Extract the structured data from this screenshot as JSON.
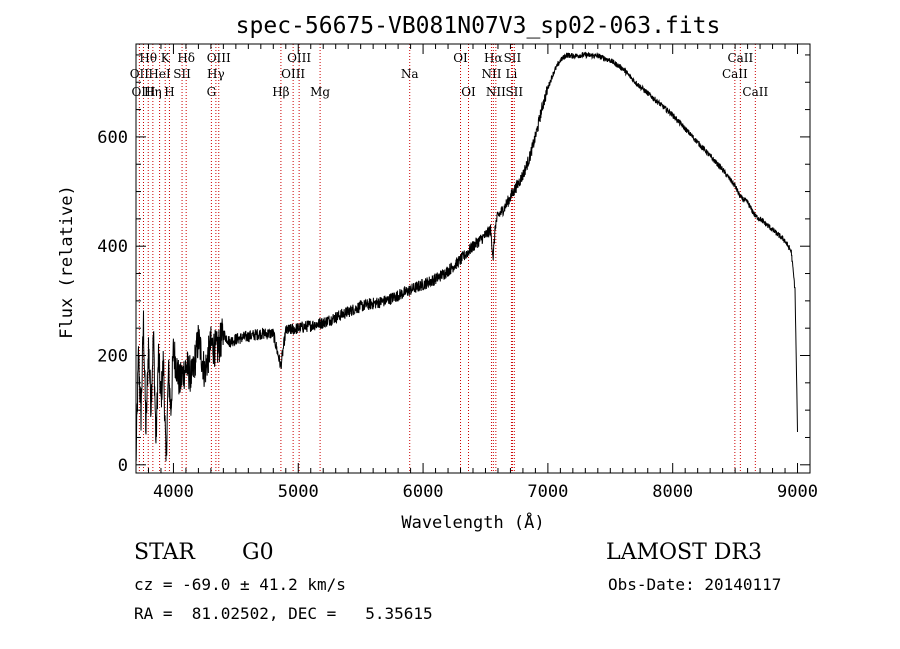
{
  "chart_data": {
    "type": "line",
    "title": "spec-56675-VB081N07V3_sp02-063.fits",
    "xlabel": "Wavelength (Å)",
    "ylabel": "Flux (relative)",
    "xlim": [
      3700,
      9100
    ],
    "ylim": [
      -15,
      770
    ],
    "x_ticks": [
      4000,
      5000,
      6000,
      7000,
      8000,
      9000
    ],
    "y_ticks": [
      0,
      200,
      400,
      600
    ],
    "grid": false,
    "series": [
      {
        "name": "flux",
        "x": [
          3700,
          3720,
          3740,
          3760,
          3780,
          3800,
          3820,
          3840,
          3860,
          3880,
          3900,
          3920,
          3940,
          3960,
          3980,
          4000,
          4050,
          4100,
          4150,
          4200,
          4250,
          4300,
          4350,
          4400,
          4450,
          4500,
          4600,
          4700,
          4800,
          4860,
          4900,
          5000,
          5100,
          5200,
          5300,
          5400,
          5500,
          5600,
          5700,
          5800,
          5900,
          6000,
          6100,
          6200,
          6300,
          6400,
          6450,
          6500,
          6540,
          6562,
          6580,
          6600,
          6650,
          6700,
          6750,
          6800,
          6850,
          6900,
          6950,
          7000,
          7050,
          7100,
          7150,
          7200,
          7300,
          7400,
          7500,
          7600,
          7700,
          7800,
          7900,
          8000,
          8100,
          8200,
          8300,
          8400,
          8500,
          8542,
          8600,
          8662,
          8700,
          8800,
          8900,
          8950,
          8980,
          9000
        ],
        "y": [
          0,
          200,
          90,
          260,
          60,
          220,
          110,
          240,
          40,
          200,
          120,
          190,
          0,
          170,
          100,
          210,
          150,
          180,
          160,
          230,
          170,
          220,
          210,
          240,
          225,
          230,
          235,
          240,
          240,
          180,
          245,
          250,
          255,
          260,
          270,
          280,
          290,
          295,
          300,
          310,
          320,
          330,
          340,
          355,
          375,
          400,
          410,
          420,
          430,
          380,
          440,
          455,
          470,
          490,
          510,
          530,
          560,
          600,
          650,
          690,
          720,
          740,
          750,
          748,
          750,
          748,
          740,
          725,
          700,
          680,
          660,
          640,
          615,
          590,
          565,
          540,
          510,
          490,
          480,
          455,
          450,
          430,
          410,
          390,
          320,
          60
        ]
      }
    ],
    "spectral_lines": [
      {
        "label": "Hθ",
        "wavelength": 3798,
        "row": 1
      },
      {
        "label": "OII",
        "wavelength": 3727,
        "row": 2
      },
      {
        "label": "OIII",
        "wavelength": 3760,
        "row": 3
      },
      {
        "label": "K",
        "wavelength": 3934,
        "row": 1
      },
      {
        "label": "HeI",
        "wavelength": 3889,
        "row": 2
      },
      {
        "label": "Hη",
        "wavelength": 3835,
        "row": 3
      },
      {
        "label": "SII",
        "wavelength": 4069,
        "row": 2
      },
      {
        "label": "H",
        "wavelength": 3968,
        "row": 3
      },
      {
        "label": "Hδ",
        "wavelength": 4102,
        "row": 1
      },
      {
        "label": "OIII",
        "wavelength": 4363,
        "row": 1
      },
      {
        "label": "Hγ",
        "wavelength": 4340,
        "row": 2
      },
      {
        "label": "G",
        "wavelength": 4304,
        "row": 3
      },
      {
        "label": "OIII",
        "wavelength": 5007,
        "row": 1
      },
      {
        "label": "OIII",
        "wavelength": 4959,
        "row": 2
      },
      {
        "label": "Hβ",
        "wavelength": 4861,
        "row": 3
      },
      {
        "label": "Mg",
        "wavelength": 5175,
        "row": 3
      },
      {
        "label": "Na",
        "wavelength": 5893,
        "row": 2
      },
      {
        "label": "OI",
        "wavelength": 6300,
        "row": 1
      },
      {
        "label": "OI",
        "wavelength": 6364,
        "row": 3
      },
      {
        "label": "Hα",
        "wavelength": 6563,
        "row": 1
      },
      {
        "label": "NII",
        "wavelength": 6548,
        "row": 2
      },
      {
        "label": "NII",
        "wavelength": 6583,
        "row": 3
      },
      {
        "label": "SII",
        "wavelength": 6716,
        "row": 1
      },
      {
        "label": "Li",
        "wavelength": 6708,
        "row": 2
      },
      {
        "label": "SII",
        "wavelength": 6731,
        "row": 3
      },
      {
        "label": "CaII",
        "wavelength": 8542,
        "row": 1
      },
      {
        "label": "CaII",
        "wavelength": 8498,
        "row": 2
      },
      {
        "label": "CaII",
        "wavelength": 8662,
        "row": 3
      }
    ]
  },
  "info": {
    "class": "STAR",
    "subclass": "G0",
    "survey": "LAMOST DR3",
    "redshift": "cz = -69.0 ± 41.2 km/s",
    "obs_date": "Obs-Date: 20140117",
    "coords": "RA =  81.02502, DEC =   5.35615"
  },
  "colors": {
    "line": "#000000",
    "marker": "#cc0000",
    "axis": "#000000"
  }
}
